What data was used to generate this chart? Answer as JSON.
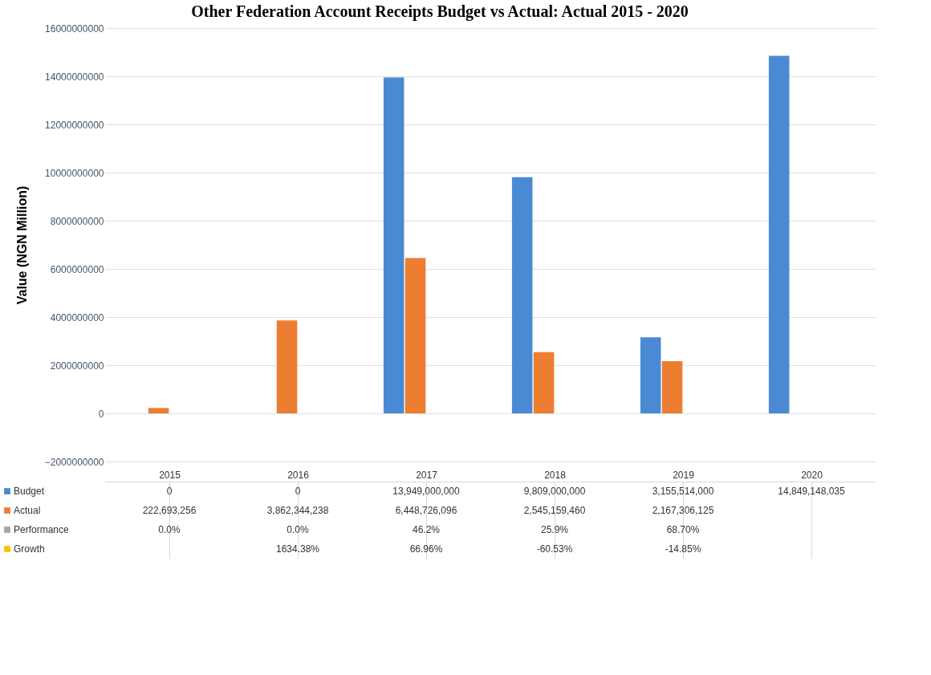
{
  "chart_data": {
    "type": "bar",
    "title": "Other Federation Account Receipts Budget vs Actual: Actual 2015 - 2020",
    "ylabel": "Value (NGN Million)",
    "categories": [
      "2015",
      "2016",
      "2017",
      "2018",
      "2019",
      "2020"
    ],
    "series": [
      {
        "name": "Budget",
        "color": "#4a8ad4",
        "values": [
          0,
          0,
          13949000000,
          9809000000,
          3155514000,
          14849148035
        ],
        "value_labels": [
          "0",
          "0",
          "13,949,000,000",
          "9,809,000,000",
          "3,155,514,000",
          "14,849,148,035"
        ]
      },
      {
        "name": "Actual",
        "color": "#ed7d31",
        "values": [
          222693256,
          3862344238,
          6448726096,
          2545159460,
          2167306125,
          null
        ],
        "value_labels": [
          "222,693,256",
          "3,862,344,238",
          "6,448,726,096",
          "2,545,159,460",
          "2,167,306,125",
          null
        ]
      },
      {
        "name": "Performance",
        "color": "#a5a5a5",
        "values": [
          0.0,
          0.0,
          46.2,
          25.9,
          68.7,
          null
        ],
        "value_labels": [
          "0.0%",
          "0.0%",
          "46.2%",
          "25.9%",
          "68.70%",
          null
        ]
      },
      {
        "name": "Growth",
        "color": "#ffc000",
        "values": [
          null,
          1634.38,
          66.96,
          -60.53,
          -14.85,
          null
        ],
        "value_labels": [
          null,
          "1634.38%",
          "66.96%",
          "-60.53%",
          "-14.85%",
          null
        ]
      }
    ],
    "ylim": [
      -2000000000,
      16000000000
    ],
    "yticks": [
      -2000000000,
      0,
      2000000000,
      4000000000,
      6000000000,
      8000000000,
      10000000000,
      12000000000,
      14000000000,
      16000000000
    ],
    "grid": "y",
    "legend": "bottom"
  }
}
